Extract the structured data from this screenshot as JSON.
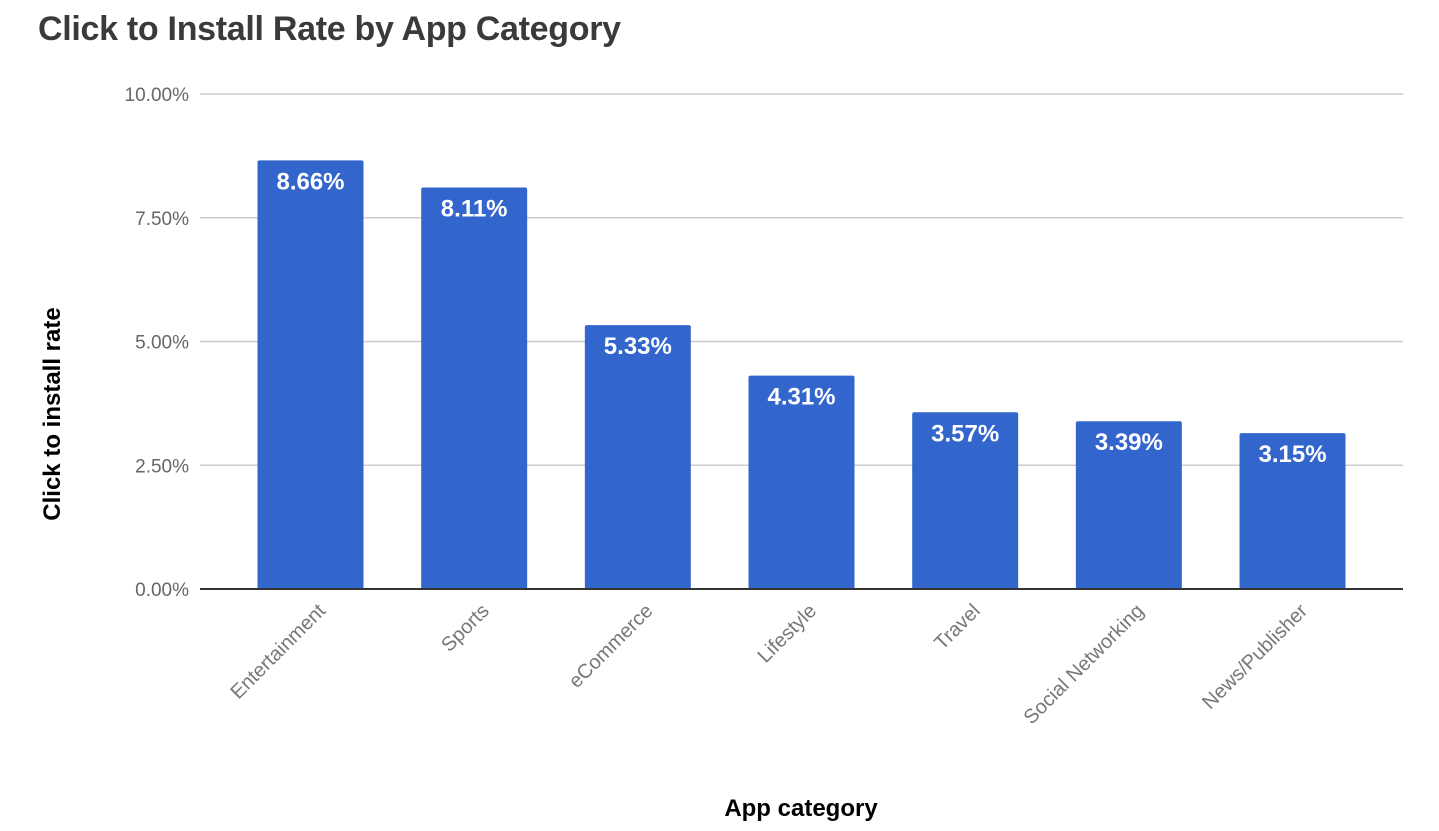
{
  "chart_data": {
    "type": "bar",
    "title": "Click to Install Rate by App Category",
    "xlabel": "App category",
    "ylabel": "Click to install rate",
    "categories": [
      "Entertainment",
      "Sports",
      "eCommerce",
      "Lifestyle",
      "Travel",
      "Social Networking",
      "News/Publisher"
    ],
    "values": [
      8.66,
      8.11,
      5.33,
      4.31,
      3.57,
      3.39,
      3.15
    ],
    "data_labels": [
      "8.66%",
      "8.11%",
      "5.33%",
      "4.31%",
      "3.57%",
      "3.39%",
      "3.15%"
    ],
    "ylim": [
      0,
      10
    ],
    "yticks": [
      0,
      2.5,
      5,
      7.5,
      10
    ],
    "ytick_labels": [
      "0.00%",
      "2.50%",
      "5.00%",
      "7.50%",
      "10.00%"
    ],
    "grid": true,
    "legend": "none",
    "bar_color": "#3366cc"
  }
}
